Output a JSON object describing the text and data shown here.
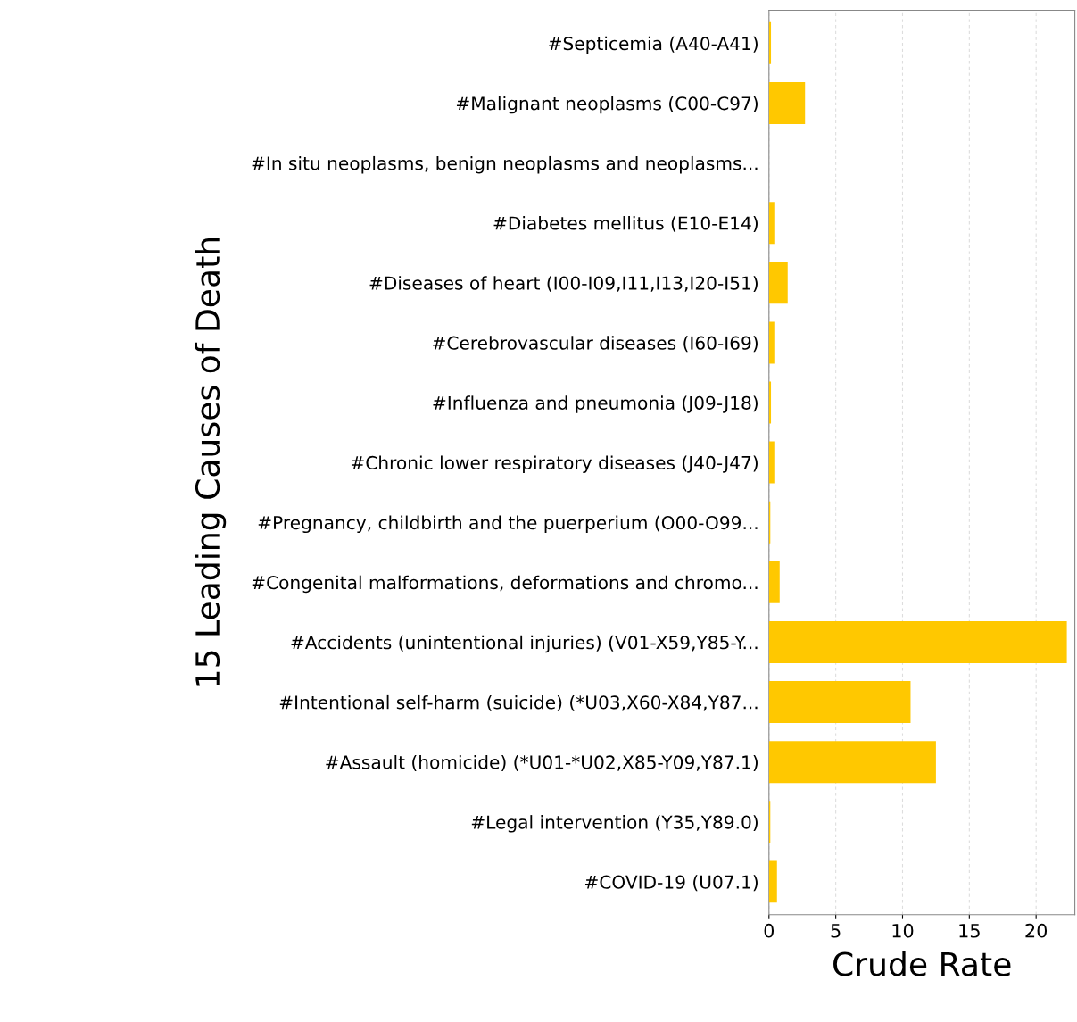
{
  "chart_data": {
    "type": "bar",
    "orientation": "horizontal",
    "categories": [
      "#Septicemia (A40-A41)",
      "#Malignant neoplasms (C00-C97)",
      "#In situ neoplasms, benign neoplasms and neoplasms...",
      "#Diabetes mellitus (E10-E14)",
      "#Diseases of heart (I00-I09,I11,I13,I20-I51)",
      "#Cerebrovascular diseases (I60-I69)",
      "#Influenza and pneumonia (J09-J18)",
      "#Chronic lower respiratory diseases (J40-J47)",
      "#Pregnancy, childbirth and the puerperium (O00-O99...",
      "#Congenital malformations, deformations and chromo...",
      "#Accidents (unintentional injuries) (V01-X59,Y85-Y...",
      "#Intentional self-harm (suicide) (*U03,X60-X84,Y87...",
      "#Assault (homicide) (*U01-*U02,X85-Y09,Y87.1)",
      "#Legal intervention (Y35,Y89.0)",
      "#COVID-19 (U07.1)"
    ],
    "values": [
      0.15,
      2.7,
      0,
      0.4,
      1.4,
      0.4,
      0.15,
      0.4,
      0.1,
      0.8,
      22.3,
      10.6,
      12.5,
      0.1,
      0.6
    ],
    "color": "#ffc800",
    "xlim": [
      0,
      22.9
    ],
    "xticks": [
      0,
      5,
      10,
      15,
      20
    ],
    "xlabel": "Crude Rate",
    "ylabel": "15 Leading Causes of Death",
    "grid": "x",
    "legend": false
  }
}
